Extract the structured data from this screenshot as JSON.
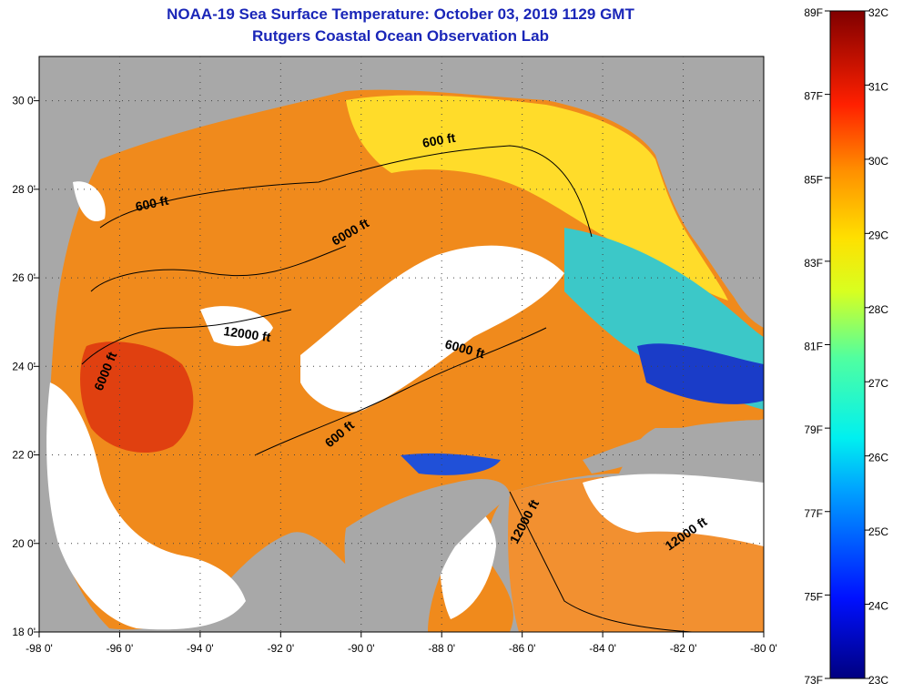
{
  "header": {
    "title": "NOAA-19 Sea Surface Temperature:  October 03, 2019 1129 GMT",
    "subtitle": "Rutgers Coastal Ocean Observation Lab"
  },
  "map": {
    "lon_range": [
      -98,
      -80
    ],
    "lat_range": [
      18,
      31
    ],
    "x_ticks": [
      "-98 0'",
      "-96 0'",
      "-94 0'",
      "-92 0'",
      "-90 0'",
      "-88 0'",
      "-86 0'",
      "-84 0'",
      "-82 0'",
      "-80 0'"
    ],
    "y_ticks": [
      "30 0'",
      "28 0'",
      "26 0'",
      "24 0'",
      "22 0'",
      "20 0'",
      "18 0'"
    ],
    "contour_labels": [
      "600 ft",
      "600 ft",
      "6000 ft",
      "12000 ft",
      "6000 ft",
      "6000 ft",
      "600 ft",
      "12000 ft",
      "12000 ft"
    ],
    "colors": {
      "land": "#a8a8a8",
      "cloud": "#ffffff",
      "warm": "#ff7a10",
      "mid": "#ffd21a",
      "cool": "#19b4f0",
      "cold": "#0a1ea0"
    }
  },
  "colorbar": {
    "fahrenheit": [
      "89F",
      "87F",
      "85F",
      "83F",
      "81F",
      "79F",
      "77F",
      "75F",
      "73F"
    ],
    "celsius": [
      "32C",
      "31C",
      "30C",
      "29C",
      "28C",
      "27C",
      "26C",
      "25C",
      "24C",
      "23C"
    ]
  }
}
